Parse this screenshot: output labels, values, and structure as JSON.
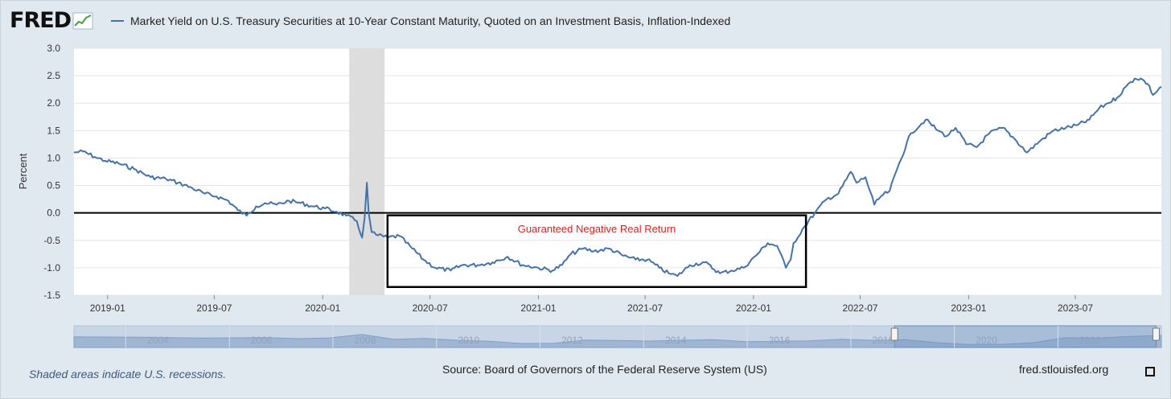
{
  "header": {
    "logo_text": "FRED",
    "logo_icon": "trend-line-icon",
    "legend_label": "Market Yield on U.S. Treasury Securities at 10-Year Constant Maturity, Quoted on an Investment Basis, Inflation-Indexed"
  },
  "footer": {
    "recession_note": "Shaded areas indicate U.S. recessions.",
    "source": "Source: Board of Governors of the Federal Reserve System (US)",
    "site": "fred.stlouisfed.org",
    "fullscreen_icon": "fullscreen-icon"
  },
  "colors": {
    "series": "#4572a7",
    "annotation": "#e02020",
    "recession": "#dddddd",
    "navigator_fill": "#9fb6d3"
  },
  "chart_data": {
    "type": "line",
    "title": "Market Yield on U.S. Treasury Securities at 10-Year Constant Maturity, Quoted on an Investment Basis, Inflation-Indexed",
    "xlabel": "",
    "ylabel": "Percent",
    "ylim": [
      -1.5,
      3.0
    ],
    "xlim": [
      "2018-11-05",
      "2023-11-24"
    ],
    "y_ticks": [
      "3.0",
      "2.5",
      "2.0",
      "1.5",
      "1.0",
      "0.5",
      "0.0",
      "-0.5",
      "-1.0",
      "-1.5"
    ],
    "x_ticks": [
      "2019-01",
      "2019-07",
      "2020-01",
      "2020-07",
      "2021-01",
      "2021-07",
      "2022-01",
      "2022-07",
      "2023-01",
      "2023-07"
    ],
    "recessions": [
      {
        "start": "2020-02-15",
        "end": "2020-04-15"
      }
    ],
    "reference_line": 0.0,
    "annotation": {
      "text": "Guaranteed Negative Real Return",
      "box_start": "2020-04-20",
      "box_end": "2022-03-31",
      "box_top": 0.0,
      "box_bottom": -1.35
    },
    "series": [
      {
        "name": "Market Yield on U.S. Treasury Securities at 10-Year Constant Maturity, Quoted on an Investment Basis, Inflation-Indexed",
        "dates": [
          "2018-11-05",
          "2018-11-20",
          "2018-12-10",
          "2018-12-28",
          "2019-01-20",
          "2019-02-15",
          "2019-03-15",
          "2019-04-10",
          "2019-05-01",
          "2019-05-25",
          "2019-06-15",
          "2019-07-05",
          "2019-07-25",
          "2019-08-10",
          "2019-08-25",
          "2019-09-10",
          "2019-09-25",
          "2019-10-15",
          "2019-11-05",
          "2019-11-25",
          "2019-12-15",
          "2020-01-05",
          "2020-01-25",
          "2020-02-10",
          "2020-02-28",
          "2020-03-08",
          "2020-03-12",
          "2020-03-16",
          "2020-03-19",
          "2020-03-24",
          "2020-04-01",
          "2020-04-20",
          "2020-05-10",
          "2020-06-01",
          "2020-06-20",
          "2020-07-10",
          "2020-08-05",
          "2020-08-25",
          "2020-09-20",
          "2020-10-15",
          "2020-11-10",
          "2020-12-05",
          "2021-01-01",
          "2021-01-25",
          "2021-02-10",
          "2021-02-25",
          "2021-03-18",
          "2021-04-05",
          "2021-05-01",
          "2021-05-25",
          "2021-06-15",
          "2021-07-05",
          "2021-07-25",
          "2021-08-10",
          "2021-08-25",
          "2021-09-15",
          "2021-10-10",
          "2021-11-05",
          "2021-11-25",
          "2021-12-15",
          "2022-01-05",
          "2022-01-25",
          "2022-02-10",
          "2022-02-25",
          "2022-03-05",
          "2022-03-10",
          "2022-03-25",
          "2022-04-15",
          "2022-05-05",
          "2022-05-25",
          "2022-06-15",
          "2022-06-25",
          "2022-07-10",
          "2022-07-25",
          "2022-08-05",
          "2022-08-20",
          "2022-09-05",
          "2022-09-25",
          "2022-10-20",
          "2022-11-10",
          "2022-11-25",
          "2022-12-10",
          "2022-12-28",
          "2023-01-15",
          "2023-02-05",
          "2023-02-28",
          "2023-03-20",
          "2023-04-10",
          "2023-05-01",
          "2023-05-25",
          "2023-06-15",
          "2023-07-05",
          "2023-07-25",
          "2023-08-10",
          "2023-08-25",
          "2023-09-10",
          "2023-09-25",
          "2023-10-10",
          "2023-10-20",
          "2023-11-01",
          "2023-11-10",
          "2023-11-24"
        ],
        "values": [
          1.1,
          1.12,
          1.02,
          0.95,
          0.9,
          0.8,
          0.65,
          0.62,
          0.55,
          0.45,
          0.35,
          0.3,
          0.22,
          0.05,
          -0.05,
          0.12,
          0.18,
          0.15,
          0.22,
          0.18,
          0.12,
          0.08,
          0.02,
          -0.05,
          -0.15,
          -0.45,
          -0.1,
          0.55,
          0.0,
          -0.35,
          -0.4,
          -0.45,
          -0.42,
          -0.65,
          -0.85,
          -1.0,
          -1.05,
          -0.95,
          -0.95,
          -0.9,
          -0.8,
          -0.95,
          -1.0,
          -1.05,
          -0.95,
          -0.75,
          -0.65,
          -0.7,
          -0.65,
          -0.78,
          -0.85,
          -0.85,
          -1.0,
          -1.1,
          -1.15,
          -0.95,
          -0.9,
          -1.1,
          -1.05,
          -1.0,
          -0.78,
          -0.55,
          -0.6,
          -1.0,
          -0.85,
          -0.55,
          -0.3,
          0.0,
          0.25,
          0.35,
          0.75,
          0.55,
          0.65,
          0.15,
          0.3,
          0.4,
          0.9,
          1.45,
          1.7,
          1.5,
          1.4,
          1.55,
          1.25,
          1.2,
          1.45,
          1.55,
          1.35,
          1.1,
          1.3,
          1.5,
          1.55,
          1.6,
          1.7,
          1.9,
          2.0,
          2.1,
          2.3,
          2.45,
          2.45,
          2.35,
          2.15,
          2.3
        ]
      }
    ],
    "navigator": {
      "ticks": [
        "2004",
        "2006",
        "2008",
        "2010",
        "2012",
        "2014",
        "2016",
        "2018",
        "2020",
        "2022"
      ],
      "range_start": "2003-01-01",
      "range_end": "2023-12-31",
      "selected_start": "2018-11-05",
      "selected_end": "2023-11-24",
      "profile": [
        1.9,
        1.8,
        1.7,
        1.6,
        1.4,
        1.5,
        1.6,
        1.2,
        1.5,
        2.8,
        1.0,
        1.3,
        0.6,
        0.2,
        -0.6,
        -0.5,
        0.7,
        0.5,
        0.3,
        0.6,
        0.8,
        0.1,
        0.2,
        0.4,
        1.0,
        0.6,
        0.8,
        -0.3,
        -1.0,
        -0.9,
        -0.3,
        1.6,
        1.4,
        2.0,
        2.4
      ]
    }
  }
}
